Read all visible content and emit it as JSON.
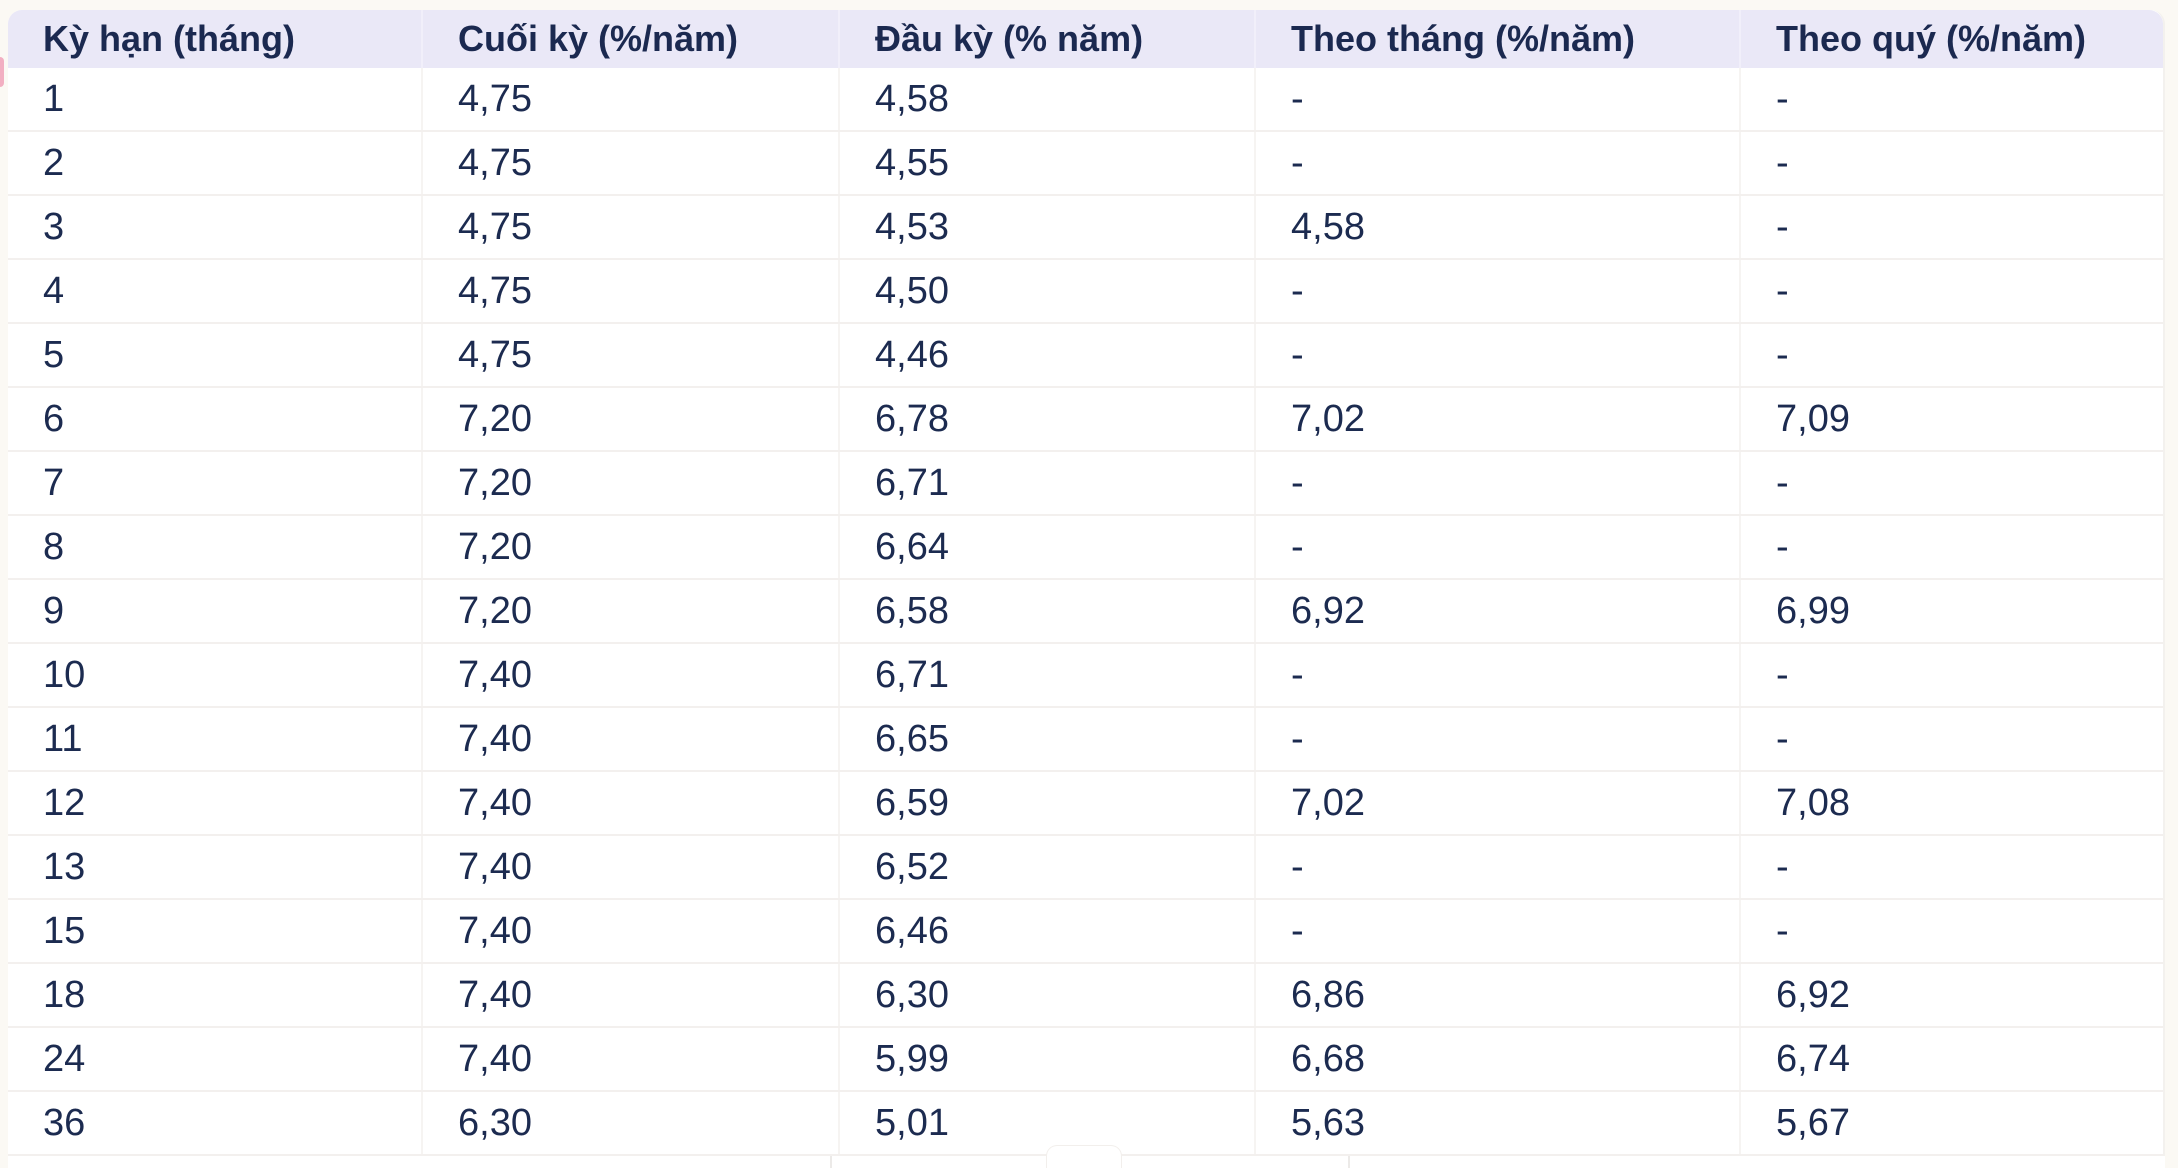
{
  "table": {
    "columns": [
      {
        "key": "term-months",
        "label": "Kỳ hạn (tháng)"
      },
      {
        "key": "end-of-term",
        "label": "Cuối kỳ (%/năm)"
      },
      {
        "key": "start-of-term",
        "label": "Đầu kỳ (% năm)"
      },
      {
        "key": "monthly",
        "label": "Theo tháng (%/năm)"
      },
      {
        "key": "quarterly",
        "label": "Theo quý (%/năm)"
      }
    ],
    "empty_value": "-",
    "rows": [
      [
        "1",
        "4,75",
        "4,58",
        "-",
        "-"
      ],
      [
        "2",
        "4,75",
        "4,55",
        "-",
        "-"
      ],
      [
        "3",
        "4,75",
        "4,53",
        "4,58",
        "-"
      ],
      [
        "4",
        "4,75",
        "4,50",
        "-",
        "-"
      ],
      [
        "5",
        "4,75",
        "4,46",
        "-",
        "-"
      ],
      [
        "6",
        "7,20",
        "6,78",
        "7,02",
        "7,09"
      ],
      [
        "7",
        "7,20",
        "6,71",
        "-",
        "-"
      ],
      [
        "8",
        "7,20",
        "6,64",
        "-",
        "-"
      ],
      [
        "9",
        "7,20",
        "6,58",
        "6,92",
        "6,99"
      ],
      [
        "10",
        "7,40",
        "6,71",
        "-",
        "-"
      ],
      [
        "11",
        "7,40",
        "6,65",
        "-",
        "-"
      ],
      [
        "12",
        "7,40",
        "6,59",
        "7,02",
        "7,08"
      ],
      [
        "13",
        "7,40",
        "6,52",
        "-",
        "-"
      ],
      [
        "15",
        "7,40",
        "6,46",
        "-",
        "-"
      ],
      [
        "18",
        "7,40",
        "6,30",
        "6,86",
        "6,92"
      ],
      [
        "24",
        "7,40",
        "5,99",
        "6,68",
        "6,74"
      ],
      [
        "36",
        "6,30",
        "5,01",
        "5,63",
        "5,67"
      ]
    ]
  },
  "colors": {
    "page_background": "#fbf9f4",
    "header_background": "#eae8f7",
    "row_background": "#ffffff",
    "text": "#1c2b50",
    "row_border": "#f3f0ee",
    "column_divider": "#f6f4f2",
    "left_edge_sliver": "#f2afc2"
  }
}
